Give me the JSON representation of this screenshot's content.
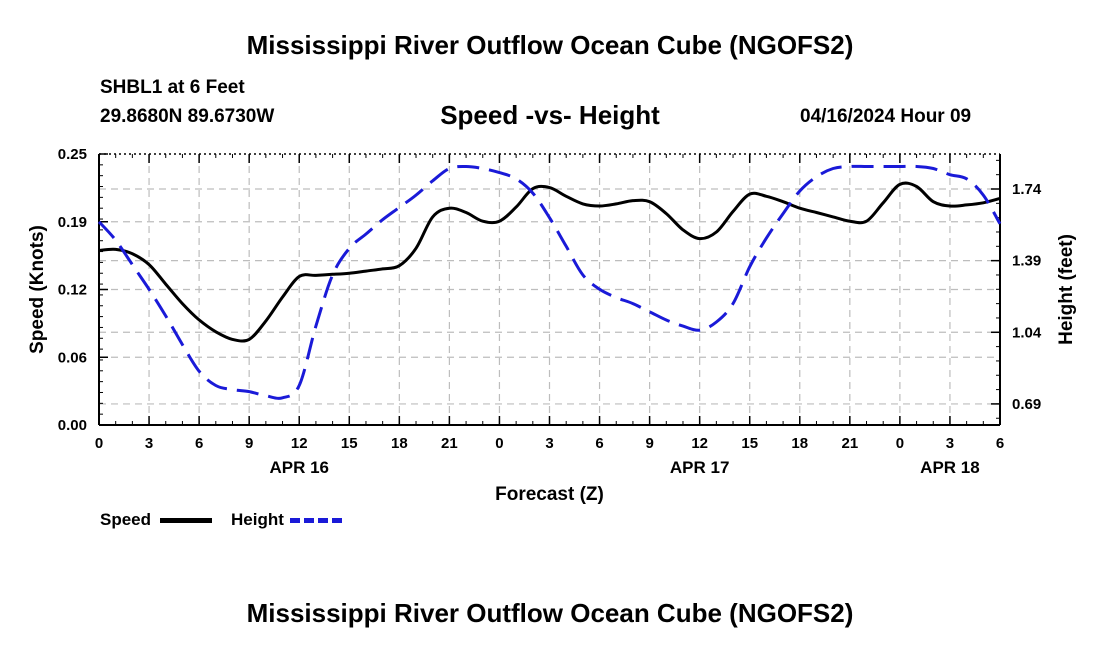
{
  "page": {
    "title_top": "Mississippi River Outflow Ocean Cube (NGOFS2)",
    "title_bottom": "Mississippi River Outflow Ocean Cube (NGOFS2)",
    "station_line": "SHBL1 at 6 Feet",
    "coords_line": "29.8680N  89.6730W",
    "subtitle": "Speed -vs- Height",
    "timestamp": "04/16/2024 Hour 09"
  },
  "legend": {
    "speed_label": "Speed",
    "height_label": "Height"
  },
  "colors": {
    "speed": "#000000",
    "height": "#1a1ad8",
    "grid": "#bdbdbd"
  },
  "chart_data": {
    "type": "line",
    "xlabel": "Forecast (Z)",
    "ylabel_left": "Speed (Knots)",
    "ylabel_right": "Height (feet)",
    "x_hours_range": [
      0,
      54
    ],
    "ylim_left": [
      0.0,
      0.25
    ],
    "ylim_right": [
      0.587,
      1.911
    ],
    "x_ticks": [
      {
        "hour": 0,
        "label": "0"
      },
      {
        "hour": 3,
        "label": "3"
      },
      {
        "hour": 6,
        "label": "6"
      },
      {
        "hour": 9,
        "label": "9"
      },
      {
        "hour": 12,
        "label": "12"
      },
      {
        "hour": 15,
        "label": "15"
      },
      {
        "hour": 18,
        "label": "18"
      },
      {
        "hour": 21,
        "label": "21"
      },
      {
        "hour": 24,
        "label": "0"
      },
      {
        "hour": 27,
        "label": "3"
      },
      {
        "hour": 30,
        "label": "6"
      },
      {
        "hour": 33,
        "label": "9"
      },
      {
        "hour": 36,
        "label": "12"
      },
      {
        "hour": 39,
        "label": "15"
      },
      {
        "hour": 42,
        "label": "18"
      },
      {
        "hour": 45,
        "label": "21"
      },
      {
        "hour": 48,
        "label": "0"
      },
      {
        "hour": 51,
        "label": "3"
      },
      {
        "hour": 54,
        "label": "6"
      }
    ],
    "date_labels": [
      {
        "hour": 12,
        "label": "APR 16"
      },
      {
        "hour": 36,
        "label": "APR 17"
      },
      {
        "hour": 51,
        "label": "APR 18"
      }
    ],
    "y_ticks_left": [
      {
        "value": 0.0,
        "label": "0.00"
      },
      {
        "value": 0.0625,
        "label": "0.06"
      },
      {
        "value": 0.125,
        "label": "0.12"
      },
      {
        "value": 0.1875,
        "label": "0.19"
      },
      {
        "value": 0.25,
        "label": "0.25"
      }
    ],
    "y_ticks_right": [
      {
        "value": 0.69,
        "label": "0.69"
      },
      {
        "value": 1.04,
        "label": "1.04"
      },
      {
        "value": 1.39,
        "label": "1.39"
      },
      {
        "value": 1.74,
        "label": "1.74"
      }
    ],
    "series": [
      {
        "name": "Speed",
        "axis": "left",
        "style": "solid",
        "x": [
          0,
          1,
          2,
          3,
          4,
          5,
          6,
          7,
          8,
          9,
          10,
          11,
          12,
          13,
          14,
          15,
          16,
          17,
          18,
          19,
          20,
          21,
          22,
          23,
          24,
          25,
          26,
          27,
          28,
          29,
          30,
          31,
          32,
          33,
          34,
          35,
          36,
          37,
          38,
          39,
          40,
          41,
          42,
          43,
          44,
          45,
          46,
          47,
          48,
          49,
          50,
          51,
          52,
          53,
          54
        ],
        "values": [
          0.161,
          0.162,
          0.158,
          0.148,
          0.13,
          0.112,
          0.097,
          0.086,
          0.079,
          0.079,
          0.096,
          0.118,
          0.137,
          0.138,
          0.139,
          0.14,
          0.142,
          0.144,
          0.147,
          0.163,
          0.192,
          0.2,
          0.196,
          0.188,
          0.188,
          0.201,
          0.218,
          0.219,
          0.211,
          0.204,
          0.202,
          0.204,
          0.207,
          0.206,
          0.195,
          0.18,
          0.172,
          0.178,
          0.197,
          0.213,
          0.211,
          0.206,
          0.2,
          0.196,
          0.192,
          0.188,
          0.188,
          0.205,
          0.222,
          0.22,
          0.206,
          0.202,
          0.203,
          0.205,
          0.209
        ]
      },
      {
        "name": "Height",
        "axis": "right",
        "style": "dashed",
        "x": [
          0,
          1,
          2,
          3,
          4,
          5,
          6,
          7,
          8,
          9,
          10,
          11,
          12,
          13,
          14,
          15,
          16,
          17,
          18,
          19,
          20,
          21,
          22,
          23,
          24,
          25,
          26,
          27,
          28,
          29,
          30,
          31,
          32,
          33,
          34,
          35,
          36,
          37,
          38,
          39,
          40,
          41,
          42,
          43,
          44,
          45,
          46,
          47,
          48,
          49,
          50,
          51,
          52,
          53,
          54
        ],
        "values": [
          1.58,
          1.49,
          1.37,
          1.25,
          1.12,
          0.98,
          0.85,
          0.78,
          0.76,
          0.75,
          0.73,
          0.72,
          0.78,
          1.07,
          1.32,
          1.45,
          1.52,
          1.59,
          1.65,
          1.71,
          1.78,
          1.84,
          1.85,
          1.84,
          1.82,
          1.79,
          1.72,
          1.6,
          1.46,
          1.32,
          1.25,
          1.21,
          1.18,
          1.14,
          1.1,
          1.07,
          1.05,
          1.09,
          1.18,
          1.36,
          1.5,
          1.62,
          1.73,
          1.8,
          1.84,
          1.85,
          1.85,
          1.85,
          1.85,
          1.85,
          1.84,
          1.81,
          1.79,
          1.71,
          1.57
        ]
      }
    ]
  }
}
